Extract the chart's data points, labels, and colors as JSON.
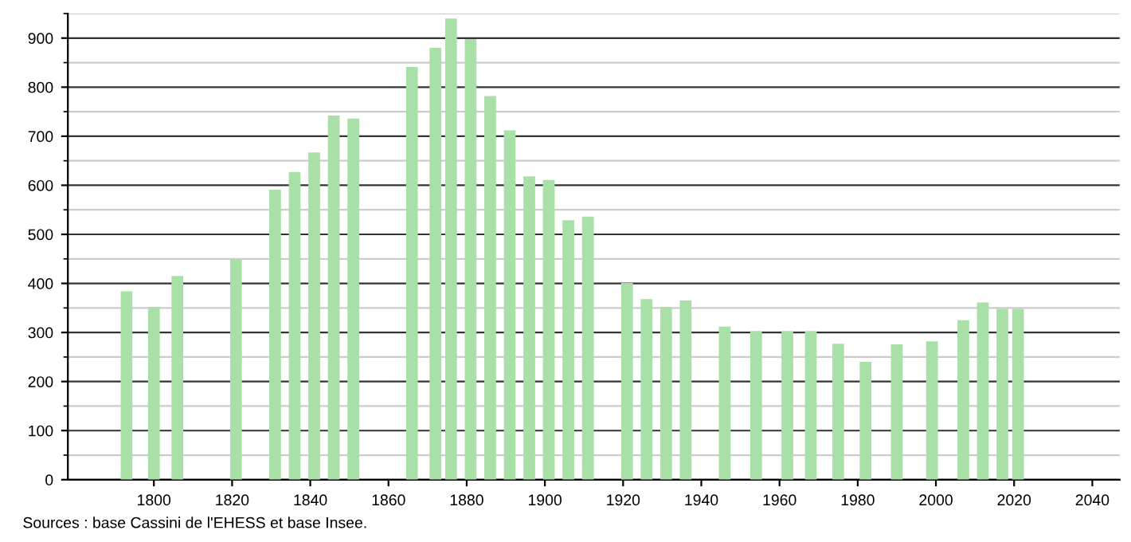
{
  "chart_data": {
    "type": "bar",
    "x": [
      1793,
      1800,
      1806,
      1821,
      1831,
      1836,
      1841,
      1846,
      1851,
      1866,
      1872,
      1876,
      1881,
      1886,
      1891,
      1896,
      1901,
      1906,
      1911,
      1921,
      1926,
      1931,
      1936,
      1946,
      1954,
      1962,
      1968,
      1975,
      1982,
      1990,
      1999,
      2007,
      2012,
      2017,
      2021
    ],
    "values": [
      384,
      352,
      415,
      449,
      591,
      627,
      667,
      742,
      736,
      841,
      880,
      940,
      898,
      782,
      712,
      618,
      611,
      529,
      536,
      401,
      368,
      352,
      365,
      312,
      303,
      303,
      303,
      277,
      240,
      276,
      282,
      325,
      361,
      348,
      348
    ],
    "color": "#a8e0a8",
    "xlim": [
      1778,
      2047
    ],
    "xticks": [
      1800,
      1820,
      1840,
      1860,
      1880,
      1900,
      1920,
      1940,
      1960,
      1980,
      2000,
      2020,
      2040
    ],
    "ylim": [
      0,
      950
    ],
    "yticks": [
      0,
      100,
      200,
      300,
      400,
      500,
      600,
      700,
      800,
      900
    ],
    "grid": "y",
    "annotations": [
      "Sources : base Cassini de l'EHESS et base Insee."
    ]
  }
}
